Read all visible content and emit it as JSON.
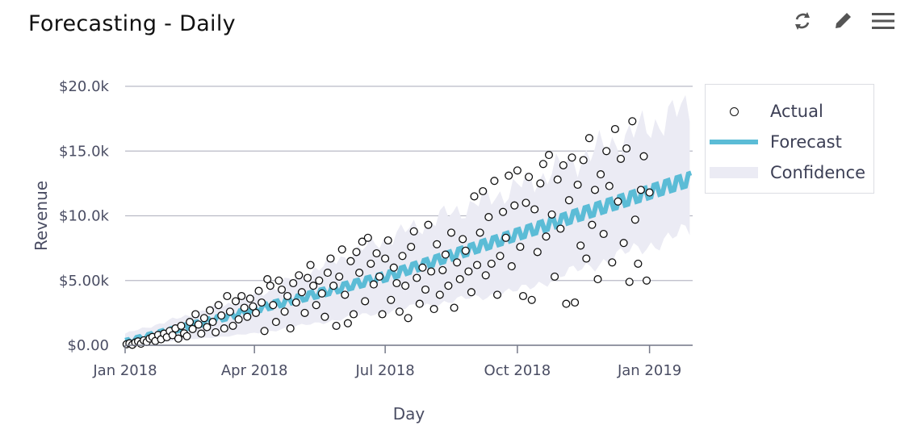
{
  "card": {
    "title": "Forecasting - Daily",
    "toolbar": [
      {
        "name": "refresh-icon"
      },
      {
        "name": "edit-icon"
      },
      {
        "name": "menu-icon"
      }
    ]
  },
  "colors": {
    "forecast": "#5bbcd6",
    "confidence": "#ebebf4",
    "actual_stroke": "#111111",
    "grid": "#b9bac6"
  },
  "chart_data": {
    "type": "scatter",
    "title": "",
    "xlabel": "Day",
    "ylabel": "Revenue",
    "x_ticks": [
      {
        "date": "2018-01-01",
        "label": "Jan 2018"
      },
      {
        "date": "2018-04-01",
        "label": "Apr 2018"
      },
      {
        "date": "2018-07-01",
        "label": "Jul 2018"
      },
      {
        "date": "2018-10-01",
        "label": "Oct 2018"
      },
      {
        "date": "2019-01-01",
        "label": "Jan 2019"
      }
    ],
    "y_ticks": [
      {
        "value": 0,
        "label": "$0.00"
      },
      {
        "value": 5000,
        "label": "$5.00k"
      },
      {
        "value": 10000,
        "label": "$10.0k"
      },
      {
        "value": 15000,
        "label": "$15.0k"
      },
      {
        "value": 20000,
        "label": "$20.0k"
      }
    ],
    "xlim": [
      "2018-01-01",
      "2019-01-31"
    ],
    "ylim": [
      0,
      20000
    ],
    "grid": "horizontal",
    "legend_position": "right",
    "series": [
      {
        "name": "Actual",
        "kind": "points",
        "points": [
          [
            "2018-01-02",
            80
          ],
          [
            "2018-01-04",
            150
          ],
          [
            "2018-01-06",
            40
          ],
          [
            "2018-01-08",
            210
          ],
          [
            "2018-01-10",
            300
          ],
          [
            "2018-01-12",
            120
          ],
          [
            "2018-01-14",
            380
          ],
          [
            "2018-01-16",
            250
          ],
          [
            "2018-01-18",
            520
          ],
          [
            "2018-01-20",
            640
          ],
          [
            "2018-01-22",
            330
          ],
          [
            "2018-01-24",
            800
          ],
          [
            "2018-01-26",
            460
          ],
          [
            "2018-01-28",
            900
          ],
          [
            "2018-01-30",
            620
          ],
          [
            "2018-02-01",
            1100
          ],
          [
            "2018-02-03",
            780
          ],
          [
            "2018-02-05",
            1300
          ],
          [
            "2018-02-07",
            520
          ],
          [
            "2018-02-09",
            1500
          ],
          [
            "2018-02-11",
            920
          ],
          [
            "2018-02-13",
            700
          ],
          [
            "2018-02-15",
            1800
          ],
          [
            "2018-02-17",
            1250
          ],
          [
            "2018-02-19",
            2400
          ],
          [
            "2018-02-21",
            1600
          ],
          [
            "2018-02-23",
            900
          ],
          [
            "2018-02-25",
            2100
          ],
          [
            "2018-02-27",
            1400
          ],
          [
            "2018-03-01",
            2700
          ],
          [
            "2018-03-03",
            1800
          ],
          [
            "2018-03-05",
            1000
          ],
          [
            "2018-03-07",
            3100
          ],
          [
            "2018-03-09",
            2300
          ],
          [
            "2018-03-11",
            1300
          ],
          [
            "2018-03-13",
            3800
          ],
          [
            "2018-03-15",
            2600
          ],
          [
            "2018-03-17",
            1500
          ],
          [
            "2018-03-19",
            3400
          ],
          [
            "2018-03-21",
            2000
          ],
          [
            "2018-03-23",
            3800
          ],
          [
            "2018-03-25",
            2900
          ],
          [
            "2018-03-27",
            2200
          ],
          [
            "2018-03-29",
            3600
          ],
          [
            "2018-03-31",
            3000
          ],
          [
            "2018-04-02",
            2500
          ],
          [
            "2018-04-04",
            4200
          ],
          [
            "2018-04-06",
            3300
          ],
          [
            "2018-04-08",
            1100
          ],
          [
            "2018-04-10",
            5100
          ],
          [
            "2018-04-12",
            4600
          ],
          [
            "2018-04-14",
            3100
          ],
          [
            "2018-04-16",
            1800
          ],
          [
            "2018-04-18",
            5000
          ],
          [
            "2018-04-20",
            4300
          ],
          [
            "2018-04-22",
            2600
          ],
          [
            "2018-04-24",
            3800
          ],
          [
            "2018-04-26",
            1300
          ],
          [
            "2018-04-28",
            4800
          ],
          [
            "2018-04-30",
            3300
          ],
          [
            "2018-05-02",
            5400
          ],
          [
            "2018-05-04",
            4100
          ],
          [
            "2018-05-06",
            2500
          ],
          [
            "2018-05-08",
            5200
          ],
          [
            "2018-05-10",
            6200
          ],
          [
            "2018-05-12",
            4600
          ],
          [
            "2018-05-14",
            3100
          ],
          [
            "2018-05-16",
            5000
          ],
          [
            "2018-05-18",
            4000
          ],
          [
            "2018-05-20",
            2200
          ],
          [
            "2018-05-22",
            5600
          ],
          [
            "2018-05-24",
            6700
          ],
          [
            "2018-05-26",
            4600
          ],
          [
            "2018-05-28",
            1500
          ],
          [
            "2018-05-30",
            5300
          ],
          [
            "2018-06-01",
            7400
          ],
          [
            "2018-06-03",
            3900
          ],
          [
            "2018-06-05",
            1700
          ],
          [
            "2018-06-07",
            6500
          ],
          [
            "2018-06-09",
            2400
          ],
          [
            "2018-06-11",
            7200
          ],
          [
            "2018-06-13",
            5600
          ],
          [
            "2018-06-15",
            8000
          ],
          [
            "2018-06-17",
            3400
          ],
          [
            "2018-06-19",
            8300
          ],
          [
            "2018-06-21",
            6300
          ],
          [
            "2018-06-23",
            4700
          ],
          [
            "2018-06-25",
            7100
          ],
          [
            "2018-06-27",
            5300
          ],
          [
            "2018-06-29",
            2400
          ],
          [
            "2018-07-01",
            6700
          ],
          [
            "2018-07-03",
            8100
          ],
          [
            "2018-07-05",
            3500
          ],
          [
            "2018-07-07",
            6000
          ],
          [
            "2018-07-09",
            4800
          ],
          [
            "2018-07-11",
            2600
          ],
          [
            "2018-07-13",
            6900
          ],
          [
            "2018-07-15",
            4600
          ],
          [
            "2018-07-17",
            2100
          ],
          [
            "2018-07-19",
            7600
          ],
          [
            "2018-07-21",
            8800
          ],
          [
            "2018-07-23",
            5200
          ],
          [
            "2018-07-25",
            3200
          ],
          [
            "2018-07-27",
            6000
          ],
          [
            "2018-07-29",
            4300
          ],
          [
            "2018-07-31",
            9300
          ],
          [
            "2018-08-02",
            5700
          ],
          [
            "2018-08-04",
            2800
          ],
          [
            "2018-08-06",
            7800
          ],
          [
            "2018-08-08",
            3900
          ],
          [
            "2018-08-10",
            5800
          ],
          [
            "2018-08-12",
            7000
          ],
          [
            "2018-08-14",
            4600
          ],
          [
            "2018-08-16",
            8700
          ],
          [
            "2018-08-18",
            2900
          ],
          [
            "2018-08-20",
            6400
          ],
          [
            "2018-08-22",
            5100
          ],
          [
            "2018-08-24",
            8200
          ],
          [
            "2018-08-26",
            7300
          ],
          [
            "2018-08-28",
            5700
          ],
          [
            "2018-08-30",
            4100
          ],
          [
            "2018-09-01",
            11500
          ],
          [
            "2018-09-03",
            6200
          ],
          [
            "2018-09-05",
            8700
          ],
          [
            "2018-09-07",
            11900
          ],
          [
            "2018-09-09",
            5400
          ],
          [
            "2018-09-11",
            9900
          ],
          [
            "2018-09-13",
            6300
          ],
          [
            "2018-09-15",
            12700
          ],
          [
            "2018-09-17",
            3900
          ],
          [
            "2018-09-19",
            6900
          ],
          [
            "2018-09-21",
            10300
          ],
          [
            "2018-09-23",
            8300
          ],
          [
            "2018-09-25",
            13100
          ],
          [
            "2018-09-27",
            6100
          ],
          [
            "2018-09-29",
            10800
          ],
          [
            "2018-10-01",
            13500
          ],
          [
            "2018-10-03",
            7600
          ],
          [
            "2018-10-05",
            3800
          ],
          [
            "2018-10-07",
            11000
          ],
          [
            "2018-10-09",
            13000
          ],
          [
            "2018-10-11",
            3500
          ],
          [
            "2018-10-13",
            10500
          ],
          [
            "2018-10-15",
            7200
          ],
          [
            "2018-10-17",
            12500
          ],
          [
            "2018-10-19",
            14000
          ],
          [
            "2018-10-21",
            8400
          ],
          [
            "2018-10-23",
            14700
          ],
          [
            "2018-10-25",
            10100
          ],
          [
            "2018-10-27",
            5300
          ],
          [
            "2018-10-29",
            12800
          ],
          [
            "2018-10-31",
            9000
          ],
          [
            "2018-11-02",
            13900
          ],
          [
            "2018-11-04",
            3200
          ],
          [
            "2018-11-06",
            11200
          ],
          [
            "2018-11-08",
            14500
          ],
          [
            "2018-11-10",
            3300
          ],
          [
            "2018-11-12",
            12400
          ],
          [
            "2018-11-14",
            7700
          ],
          [
            "2018-11-16",
            14300
          ],
          [
            "2018-11-18",
            6700
          ],
          [
            "2018-11-20",
            16000
          ],
          [
            "2018-11-22",
            9300
          ],
          [
            "2018-11-24",
            12000
          ],
          [
            "2018-11-26",
            5100
          ],
          [
            "2018-11-28",
            13200
          ],
          [
            "2018-11-30",
            8600
          ],
          [
            "2018-12-02",
            15000
          ],
          [
            "2018-12-04",
            12300
          ],
          [
            "2018-12-06",
            6400
          ],
          [
            "2018-12-08",
            16700
          ],
          [
            "2018-12-10",
            11100
          ],
          [
            "2018-12-12",
            14400
          ],
          [
            "2018-12-14",
            7900
          ],
          [
            "2018-12-16",
            15200
          ],
          [
            "2018-12-18",
            4900
          ],
          [
            "2018-12-20",
            17300
          ],
          [
            "2018-12-22",
            9700
          ],
          [
            "2018-12-24",
            6300
          ],
          [
            "2018-12-26",
            12000
          ],
          [
            "2018-12-28",
            14600
          ],
          [
            "2018-12-30",
            5000
          ],
          [
            "2019-01-01",
            11800
          ]
        ]
      },
      {
        "name": "Forecast",
        "kind": "line",
        "points": [
          [
            "2018-01-01",
            250
          ],
          [
            "2018-07-01",
            5300
          ],
          [
            "2019-01-31",
            12900
          ]
        ],
        "weekly_amplitude": 450
      },
      {
        "name": "Confidence",
        "kind": "band",
        "upper": [
          [
            "2018-01-01",
            900
          ],
          [
            "2018-04-01",
            3800
          ],
          [
            "2018-07-01",
            8200
          ],
          [
            "2018-10-01",
            12200
          ],
          [
            "2019-01-31",
            18500
          ]
        ],
        "lower": [
          [
            "2018-01-01",
            0
          ],
          [
            "2018-04-01",
            900
          ],
          [
            "2018-07-01",
            2600
          ],
          [
            "2018-10-01",
            4200
          ],
          [
            "2019-01-31",
            8900
          ]
        ]
      }
    ]
  }
}
